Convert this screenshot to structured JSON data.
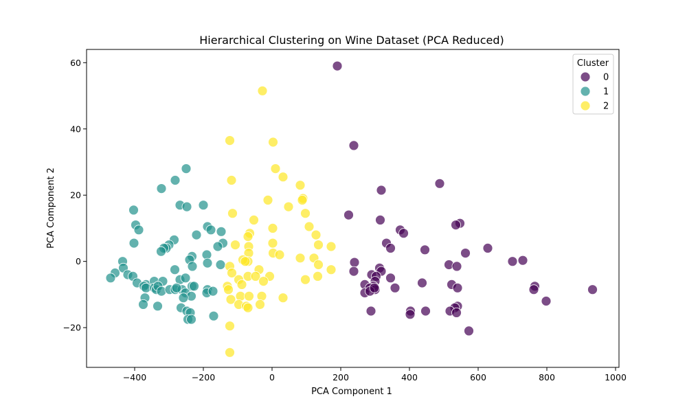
{
  "chart_data": {
    "type": "scatter",
    "title": "Hierarchical Clustering on Wine Dataset (PCA Reduced)",
    "xlabel": "PCA Component 1",
    "ylabel": "PCA Component 2",
    "xlim": [
      -540,
      1010
    ],
    "ylim": [
      -32,
      64
    ],
    "xticks": [
      -400,
      -200,
      0,
      200,
      400,
      600,
      800,
      1000
    ],
    "yticks": [
      -20,
      0,
      20,
      40,
      60
    ],
    "grid": false,
    "legend": {
      "title": "Cluster",
      "placement": "top-right"
    },
    "series": [
      {
        "name": "0",
        "color": "#440154",
        "points": [
          [
            190,
            59
          ],
          [
            238,
            35
          ],
          [
            318,
            21.5
          ],
          [
            488,
            23.5
          ],
          [
            223,
            14
          ],
          [
            315,
            12.5
          ],
          [
            547,
            11.5
          ],
          [
            535,
            11
          ],
          [
            373,
            9.5
          ],
          [
            383,
            8.5
          ],
          [
            333,
            5.5
          ],
          [
            345,
            4
          ],
          [
            445,
            3.5
          ],
          [
            563,
            2.5
          ],
          [
            628,
            4
          ],
          [
            700,
            0
          ],
          [
            730,
            0.3
          ],
          [
            240,
            -0.3
          ],
          [
            515,
            -1
          ],
          [
            538,
            -1.5
          ],
          [
            313,
            -2
          ],
          [
            238,
            -3
          ],
          [
            318,
            -3
          ],
          [
            290,
            -4
          ],
          [
            303,
            -4.5
          ],
          [
            300,
            -6
          ],
          [
            295,
            -7.5
          ],
          [
            345,
            -5
          ],
          [
            437,
            -6.5
          ],
          [
            523,
            -7
          ],
          [
            540,
            -8
          ],
          [
            765,
            -7.5
          ],
          [
            762,
            -8.5
          ],
          [
            933,
            -8.5
          ],
          [
            270,
            -7
          ],
          [
            285,
            -8
          ],
          [
            300,
            -8.5
          ],
          [
            358,
            -8
          ],
          [
            270,
            -9.5
          ],
          [
            285,
            -9
          ],
          [
            298,
            -8
          ],
          [
            798,
            -12
          ],
          [
            540,
            -13.5
          ],
          [
            532,
            -14
          ],
          [
            518,
            -15
          ],
          [
            537,
            -15.5
          ],
          [
            288,
            -15
          ],
          [
            447,
            -15
          ],
          [
            403,
            -15
          ],
          [
            402,
            -16
          ],
          [
            573,
            -21
          ]
        ]
      },
      {
        "name": "1",
        "color": "#21918c",
        "points": [
          [
            -250,
            28
          ],
          [
            -322,
            22
          ],
          [
            -282,
            24.5
          ],
          [
            -403,
            15.5
          ],
          [
            -268,
            17
          ],
          [
            -248,
            16.5
          ],
          [
            -200,
            17
          ],
          [
            -397,
            11
          ],
          [
            -188,
            10.5
          ],
          [
            -178,
            9.5
          ],
          [
            -148,
            9
          ],
          [
            -388,
            9.5
          ],
          [
            -220,
            8
          ],
          [
            -402,
            5.5
          ],
          [
            -285,
            6.5
          ],
          [
            -300,
            5
          ],
          [
            -308,
            4
          ],
          [
            -315,
            4
          ],
          [
            -323,
            3
          ],
          [
            -143,
            5.5
          ],
          [
            -158,
            4.5
          ],
          [
            -233,
            1.5
          ],
          [
            -240,
            0.5
          ],
          [
            -190,
            2
          ],
          [
            -188,
            -0.5
          ],
          [
            -150,
            -1
          ],
          [
            -435,
            0
          ],
          [
            -232,
            -1.5
          ],
          [
            -283,
            -2.5
          ],
          [
            -433,
            -2
          ],
          [
            -420,
            -4
          ],
          [
            -405,
            -4.5
          ],
          [
            -457,
            -3.5
          ],
          [
            -470,
            -5
          ],
          [
            -393,
            -6.5
          ],
          [
            -367,
            -7
          ],
          [
            -373,
            -7.5
          ],
          [
            -343,
            -6
          ],
          [
            -318,
            -6
          ],
          [
            -268,
            -5.5
          ],
          [
            -252,
            -5
          ],
          [
            -233,
            -7.5
          ],
          [
            -227,
            -7.5
          ],
          [
            -367,
            -8
          ],
          [
            -343,
            -8
          ],
          [
            -337,
            -8.5
          ],
          [
            -332,
            -7.5
          ],
          [
            -322,
            -9
          ],
          [
            -298,
            -8.5
          ],
          [
            -282,
            -8.5
          ],
          [
            -262,
            -8.5
          ],
          [
            -252,
            -9.5
          ],
          [
            -235,
            -10.5
          ],
          [
            -188,
            -8.5
          ],
          [
            -190,
            -9.5
          ],
          [
            -172,
            -9
          ],
          [
            -278,
            -8
          ],
          [
            -370,
            -11
          ],
          [
            -258,
            -11
          ],
          [
            -375,
            -13
          ],
          [
            -333,
            -13.5
          ],
          [
            -265,
            -14
          ],
          [
            -248,
            -15
          ],
          [
            -238,
            -15.5
          ],
          [
            -245,
            -17.5
          ],
          [
            -235,
            -17.5
          ],
          [
            -170,
            -16.5
          ]
        ]
      },
      {
        "name": "2",
        "color": "#fde725",
        "points": [
          [
            -28,
            51.5
          ],
          [
            -123,
            36.5
          ],
          [
            3,
            36
          ],
          [
            10,
            28
          ],
          [
            32,
            25.5
          ],
          [
            -118,
            24.5
          ],
          [
            82,
            23
          ],
          [
            90,
            19
          ],
          [
            88,
            18.5
          ],
          [
            -12,
            18.5
          ],
          [
            48,
            16.5
          ],
          [
            -115,
            14.5
          ],
          [
            97,
            14.5
          ],
          [
            -53,
            12.5
          ],
          [
            108,
            10.5
          ],
          [
            2,
            10
          ],
          [
            -65,
            8.5
          ],
          [
            -70,
            7.5
          ],
          [
            128,
            8
          ],
          [
            -107,
            5
          ],
          [
            2,
            5.5
          ],
          [
            135,
            5
          ],
          [
            172,
            4.5
          ],
          [
            -68,
            4.5
          ],
          [
            3,
            2.5
          ],
          [
            -68,
            2.5
          ],
          [
            22,
            2
          ],
          [
            82,
            1
          ],
          [
            122,
            1
          ],
          [
            -70,
            0
          ],
          [
            -85,
            0.5
          ],
          [
            -78,
            0
          ],
          [
            135,
            -1
          ],
          [
            -123,
            -1.5
          ],
          [
            -38,
            -2.5
          ],
          [
            172,
            -2.5
          ],
          [
            -117,
            -3.5
          ],
          [
            -70,
            -4.5
          ],
          [
            -48,
            -4.5
          ],
          [
            -7,
            -4.5
          ],
          [
            133,
            -4.5
          ],
          [
            -97,
            -5.5
          ],
          [
            -25,
            -6
          ],
          [
            97,
            -5.5
          ],
          [
            -88,
            -7
          ],
          [
            -130,
            -7.5
          ],
          [
            -127,
            -8.5
          ],
          [
            -92,
            -10.5
          ],
          [
            -67,
            -10.5
          ],
          [
            -30,
            -10.5
          ],
          [
            32,
            -11
          ],
          [
            -120,
            -11.5
          ],
          [
            -97,
            -13
          ],
          [
            -75,
            -13.5
          ],
          [
            -35,
            -13
          ],
          [
            -70,
            -14
          ],
          [
            -123,
            -19.5
          ],
          [
            -123,
            -27.5
          ]
        ]
      }
    ]
  }
}
